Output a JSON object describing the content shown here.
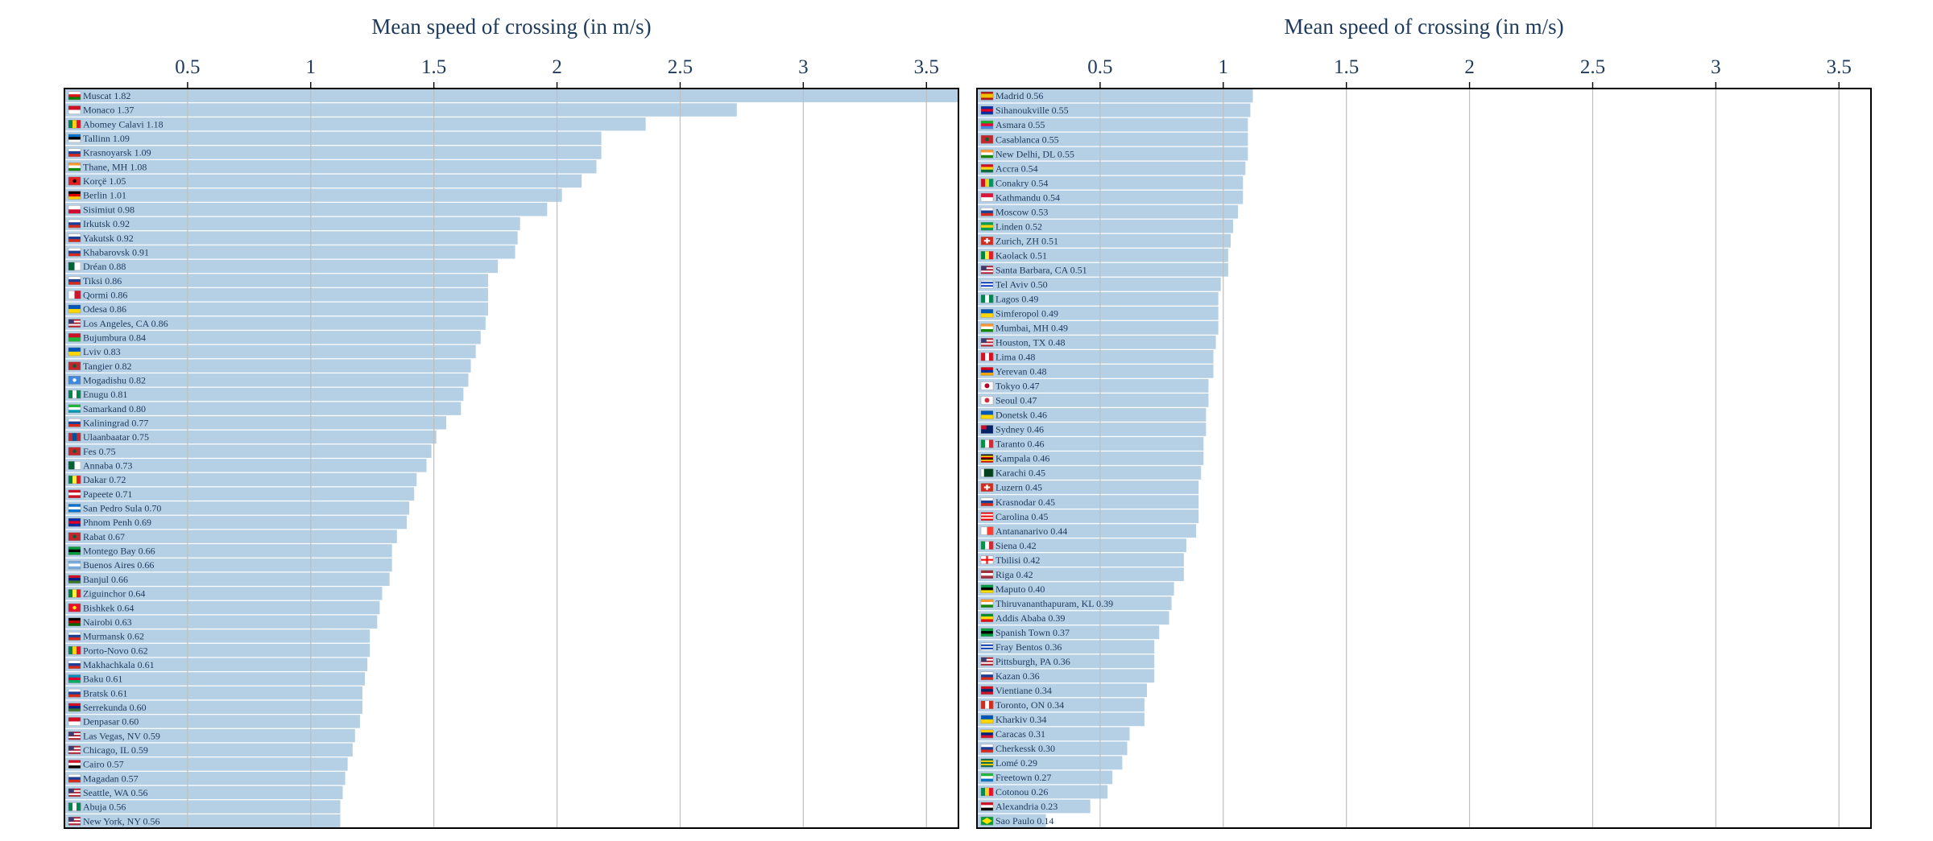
{
  "colors": {
    "bar": "#b5cfe5",
    "frame": "#000000",
    "grid": "#bfbfbf",
    "text": "#1d3a5c"
  },
  "chart_data": [
    {
      "type": "bar",
      "orientation": "horizontal",
      "title": "Mean speed of crossing (in m/s)",
      "xlim": [
        0,
        3.63
      ],
      "xticks": [
        0.5,
        1,
        1.5,
        2,
        2.5,
        3,
        3.5
      ],
      "xtick_labels": [
        "0.5",
        "1",
        "1.5",
        "2",
        "2.5",
        "3",
        "3.5"
      ],
      "grid": true,
      "bars": [
        {
          "label": "Muscat 1.82",
          "value": 3.63,
          "flag": "oman"
        },
        {
          "label": "Monaco 1.37",
          "value": 2.73,
          "flag": "monaco"
        },
        {
          "label": "Abomey Calavi 1.18",
          "value": 2.36,
          "flag": "benin"
        },
        {
          "label": "Tallinn 1.09",
          "value": 2.18,
          "flag": "estonia"
        },
        {
          "label": "Krasnoyarsk 1.09",
          "value": 2.18,
          "flag": "russia"
        },
        {
          "label": "Thane, MH 1.08",
          "value": 2.16,
          "flag": "india"
        },
        {
          "label": "Korçë 1.05",
          "value": 2.1,
          "flag": "albania"
        },
        {
          "label": "Berlin 1.01",
          "value": 2.02,
          "flag": "germany"
        },
        {
          "label": "Sisimiut 0.98",
          "value": 1.96,
          "flag": "greenland"
        },
        {
          "label": "Irkutsk 0.92",
          "value": 1.85,
          "flag": "russia"
        },
        {
          "label": "Yakutsk 0.92",
          "value": 1.84,
          "flag": "russia"
        },
        {
          "label": "Khabarovsk 0.91",
          "value": 1.83,
          "flag": "russia"
        },
        {
          "label": "Dréan 0.88",
          "value": 1.76,
          "flag": "algeria"
        },
        {
          "label": "Tiksi 0.86",
          "value": 1.72,
          "flag": "russia"
        },
        {
          "label": "Qormi 0.86",
          "value": 1.72,
          "flag": "malta"
        },
        {
          "label": "Odesa 0.86",
          "value": 1.72,
          "flag": "ukraine"
        },
        {
          "label": "Los Angeles, CA 0.86",
          "value": 1.71,
          "flag": "usa"
        },
        {
          "label": "Bujumbura 0.84",
          "value": 1.69,
          "flag": "burundi"
        },
        {
          "label": "Lviv 0.83",
          "value": 1.67,
          "flag": "ukraine"
        },
        {
          "label": "Tangier 0.82",
          "value": 1.65,
          "flag": "morocco"
        },
        {
          "label": "Mogadishu 0.82",
          "value": 1.64,
          "flag": "somalia"
        },
        {
          "label": "Enugu 0.81",
          "value": 1.62,
          "flag": "nigeria"
        },
        {
          "label": "Samarkand 0.80",
          "value": 1.61,
          "flag": "uzbekistan"
        },
        {
          "label": "Kaliningrad 0.77",
          "value": 1.55,
          "flag": "russia"
        },
        {
          "label": "Ulaanbaatar 0.75",
          "value": 1.51,
          "flag": "mongolia"
        },
        {
          "label": "Fes 0.75",
          "value": 1.49,
          "flag": "morocco"
        },
        {
          "label": "Annaba 0.73",
          "value": 1.47,
          "flag": "algeria"
        },
        {
          "label": "Dakar 0.72",
          "value": 1.43,
          "flag": "senegal"
        },
        {
          "label": "Papeete 0.71",
          "value": 1.42,
          "flag": "polynesia"
        },
        {
          "label": "San Pedro Sula 0.70",
          "value": 1.4,
          "flag": "honduras"
        },
        {
          "label": "Phnom Penh 0.69",
          "value": 1.39,
          "flag": "cambodia"
        },
        {
          "label": "Rabat 0.67",
          "value": 1.35,
          "flag": "morocco"
        },
        {
          "label": "Montego Bay 0.66",
          "value": 1.33,
          "flag": "jamaica"
        },
        {
          "label": "Buenos Aires 0.66",
          "value": 1.33,
          "flag": "argentina"
        },
        {
          "label": "Banjul 0.66",
          "value": 1.32,
          "flag": "gambia"
        },
        {
          "label": "Ziguinchor 0.64",
          "value": 1.29,
          "flag": "senegal"
        },
        {
          "label": "Bishkek 0.64",
          "value": 1.28,
          "flag": "kyrgyzstan"
        },
        {
          "label": "Nairobi 0.63",
          "value": 1.27,
          "flag": "kenya"
        },
        {
          "label": "Murmansk 0.62",
          "value": 1.24,
          "flag": "russia"
        },
        {
          "label": "Porto-Novo 0.62",
          "value": 1.24,
          "flag": "benin"
        },
        {
          "label": "Makhachkala 0.61",
          "value": 1.23,
          "flag": "russia"
        },
        {
          "label": "Baku 0.61",
          "value": 1.22,
          "flag": "azerbaijan"
        },
        {
          "label": "Bratsk 0.61",
          "value": 1.21,
          "flag": "russia"
        },
        {
          "label": "Serrekunda 0.60",
          "value": 1.21,
          "flag": "gambia"
        },
        {
          "label": "Denpasar 0.60",
          "value": 1.2,
          "flag": "indonesia"
        },
        {
          "label": "Las Vegas, NV 0.59",
          "value": 1.18,
          "flag": "usa"
        },
        {
          "label": "Chicago, IL 0.59",
          "value": 1.17,
          "flag": "usa"
        },
        {
          "label": "Cairo 0.57",
          "value": 1.15,
          "flag": "egypt"
        },
        {
          "label": "Magadan 0.57",
          "value": 1.14,
          "flag": "russia"
        },
        {
          "label": "Seattle, WA 0.56",
          "value": 1.13,
          "flag": "usa"
        },
        {
          "label": "Abuja 0.56",
          "value": 1.12,
          "flag": "nigeria"
        },
        {
          "label": "New York, NY 0.56",
          "value": 1.12,
          "flag": "usa"
        }
      ]
    },
    {
      "type": "bar",
      "orientation": "horizontal",
      "title": "Mean speed of crossing (in m/s)",
      "xlim": [
        0,
        3.63
      ],
      "xticks": [
        0.5,
        1,
        1.5,
        2,
        2.5,
        3,
        3.5
      ],
      "xtick_labels": [
        "0.5",
        "1",
        "1.5",
        "2",
        "2.5",
        "3",
        "3.5"
      ],
      "grid": true,
      "bars": [
        {
          "label": "Madrid 0.56",
          "value": 1.12,
          "flag": "spain"
        },
        {
          "label": "Sihanoukville 0.55",
          "value": 1.11,
          "flag": "cambodia"
        },
        {
          "label": "Asmara 0.55",
          "value": 1.1,
          "flag": "eritrea"
        },
        {
          "label": "Casablanca 0.55",
          "value": 1.1,
          "flag": "morocco"
        },
        {
          "label": "New Delhi, DL 0.55",
          "value": 1.1,
          "flag": "india"
        },
        {
          "label": "Accra 0.54",
          "value": 1.09,
          "flag": "ghana"
        },
        {
          "label": "Conakry 0.54",
          "value": 1.08,
          "flag": "guinea"
        },
        {
          "label": "Kathmandu 0.54",
          "value": 1.08,
          "flag": "nepal"
        },
        {
          "label": "Moscow 0.53",
          "value": 1.06,
          "flag": "russia"
        },
        {
          "label": "Linden 0.52",
          "value": 1.04,
          "flag": "guyana"
        },
        {
          "label": "Zurich, ZH 0.51",
          "value": 1.03,
          "flag": "switzerland"
        },
        {
          "label": "Kaolack 0.51",
          "value": 1.02,
          "flag": "senegal"
        },
        {
          "label": "Santa Barbara, CA 0.51",
          "value": 1.02,
          "flag": "usa"
        },
        {
          "label": "Tel Aviv 0.50",
          "value": 0.99,
          "flag": "israel"
        },
        {
          "label": "Lagos 0.49",
          "value": 0.98,
          "flag": "nigeria"
        },
        {
          "label": "Simferopol 0.49",
          "value": 0.98,
          "flag": "ukraine"
        },
        {
          "label": "Mumbai, MH 0.49",
          "value": 0.98,
          "flag": "india"
        },
        {
          "label": "Houston, TX 0.48",
          "value": 0.97,
          "flag": "usa"
        },
        {
          "label": "Lima 0.48",
          "value": 0.96,
          "flag": "peru"
        },
        {
          "label": "Yerevan 0.48",
          "value": 0.96,
          "flag": "armenia"
        },
        {
          "label": "Tokyo 0.47",
          "value": 0.94,
          "flag": "japan"
        },
        {
          "label": "Seoul 0.47",
          "value": 0.94,
          "flag": "korea"
        },
        {
          "label": "Donetsk 0.46",
          "value": 0.93,
          "flag": "ukraine"
        },
        {
          "label": "Sydney 0.46",
          "value": 0.93,
          "flag": "australia"
        },
        {
          "label": "Taranto 0.46",
          "value": 0.92,
          "flag": "italy"
        },
        {
          "label": "Kampala 0.46",
          "value": 0.92,
          "flag": "uganda"
        },
        {
          "label": "Karachi 0.45",
          "value": 0.91,
          "flag": "pakistan"
        },
        {
          "label": "Luzern 0.45",
          "value": 0.9,
          "flag": "switzerland"
        },
        {
          "label": "Krasnodar 0.45",
          "value": 0.9,
          "flag": "russia"
        },
        {
          "label": "Carolina 0.45",
          "value": 0.9,
          "flag": "puertorico"
        },
        {
          "label": "Antananarivo 0.44",
          "value": 0.89,
          "flag": "madagascar"
        },
        {
          "label": "Siena 0.42",
          "value": 0.85,
          "flag": "italy"
        },
        {
          "label": "Tbilisi 0.42",
          "value": 0.84,
          "flag": "georgia"
        },
        {
          "label": "Riga 0.42",
          "value": 0.84,
          "flag": "latvia"
        },
        {
          "label": "Maputo 0.40",
          "value": 0.8,
          "flag": "mozambique"
        },
        {
          "label": "Thiruvananthapuram, KL 0.39",
          "value": 0.79,
          "flag": "india"
        },
        {
          "label": "Addis Ababa 0.39",
          "value": 0.78,
          "flag": "ethiopia"
        },
        {
          "label": "Spanish Town 0.37",
          "value": 0.74,
          "flag": "jamaica"
        },
        {
          "label": "Fray Bentos 0.36",
          "value": 0.72,
          "flag": "uruguay"
        },
        {
          "label": "Pittsburgh, PA 0.36",
          "value": 0.72,
          "flag": "usa"
        },
        {
          "label": "Kazan 0.36",
          "value": 0.72,
          "flag": "russia"
        },
        {
          "label": "Vientiane 0.34",
          "value": 0.69,
          "flag": "laos"
        },
        {
          "label": "Toronto, ON 0.34",
          "value": 0.68,
          "flag": "canada"
        },
        {
          "label": "Kharkiv 0.34",
          "value": 0.68,
          "flag": "ukraine"
        },
        {
          "label": "Caracas 0.31",
          "value": 0.62,
          "flag": "venezuela"
        },
        {
          "label": "Cherkessk 0.30",
          "value": 0.61,
          "flag": "russia"
        },
        {
          "label": "Lomé 0.29",
          "value": 0.59,
          "flag": "togo"
        },
        {
          "label": "Freetown 0.27",
          "value": 0.55,
          "flag": "sierraleone"
        },
        {
          "label": "Cotonou 0.26",
          "value": 0.53,
          "flag": "benin"
        },
        {
          "label": "Alexandria 0.23",
          "value": 0.46,
          "flag": "egypt"
        },
        {
          "label": "Sao Paulo 0.14",
          "value": 0.28,
          "flag": "brazil"
        }
      ]
    }
  ]
}
